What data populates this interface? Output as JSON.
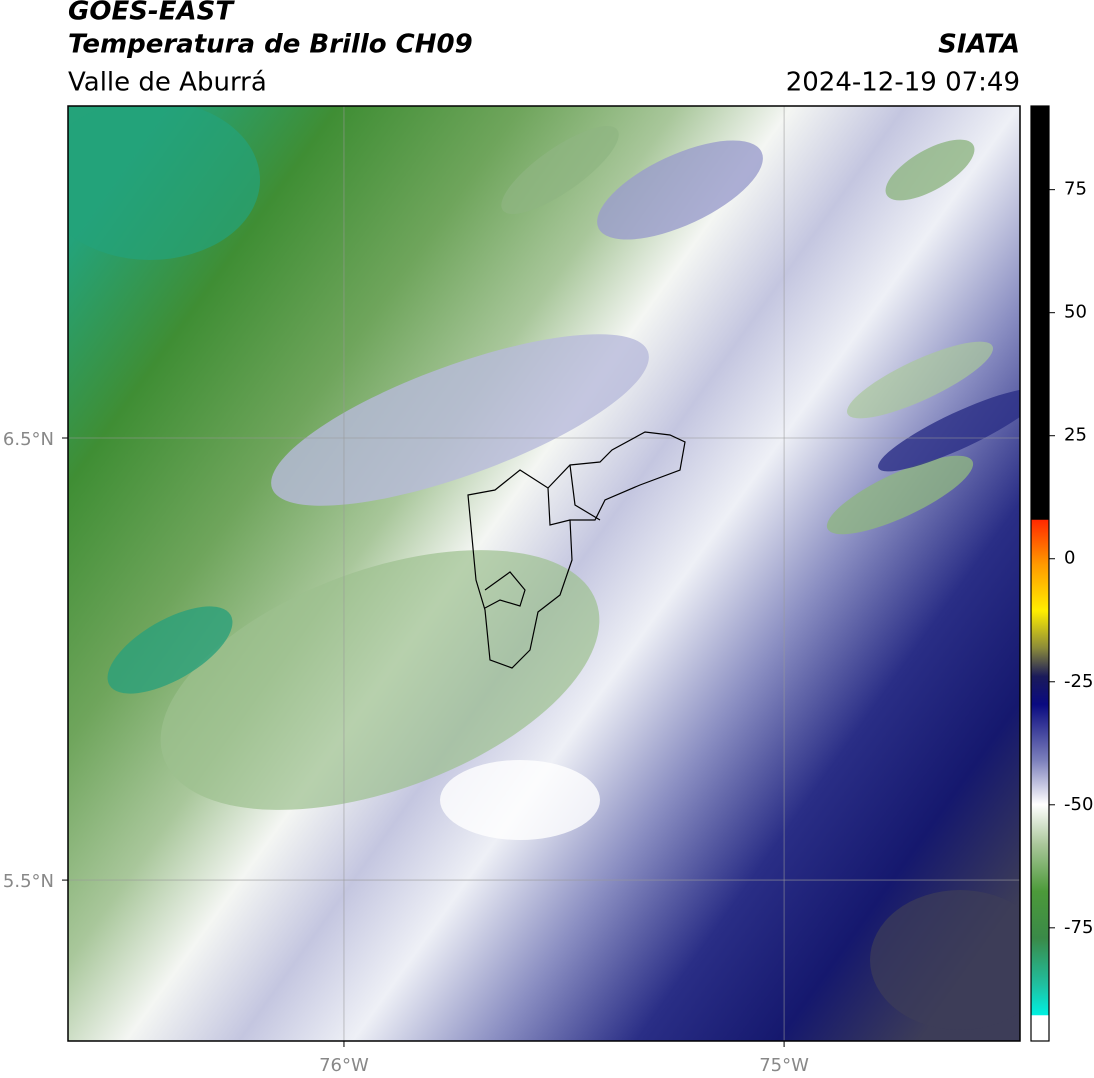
{
  "header": {
    "title": "GOES-EAST",
    "subtitle": "Temperatura de Brillo CH09",
    "region": "Valle de Aburrá",
    "source": "SIATA",
    "datetime": "2024-12-19 07:49"
  },
  "map": {
    "xlim": [
      -76.627,
      -74.464
    ],
    "ylim": [
      5.136,
      7.251
    ],
    "xticks": [
      {
        "value": -76,
        "label": "76°W"
      },
      {
        "value": -75,
        "label": "75°W"
      }
    ],
    "yticks": [
      {
        "value": 6.5,
        "label": "6.5°N"
      },
      {
        "value": 5.5,
        "label": "5.5°N"
      }
    ],
    "grid": true
  },
  "colorbar": {
    "lim": [
      -98,
      92
    ],
    "ticks": [
      75,
      50,
      25,
      0,
      -25,
      -50,
      -75
    ]
  }
}
